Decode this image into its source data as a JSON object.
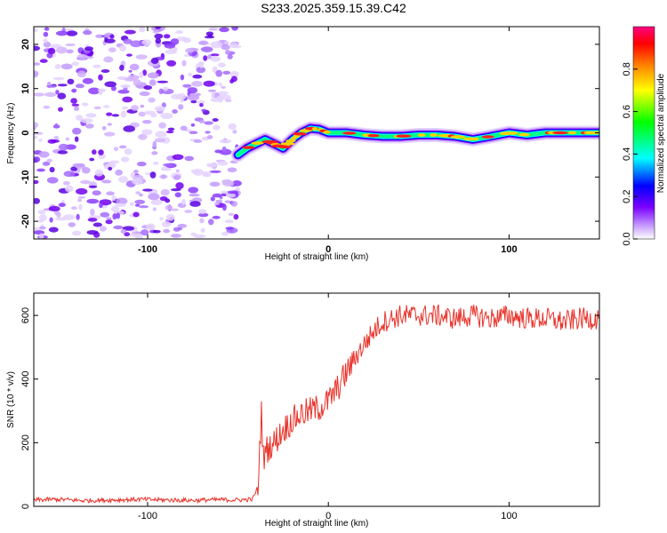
{
  "title": "S233.2025.359.15.39.C42",
  "chart_data": [
    {
      "type": "heatmap",
      "name": "spectrogram",
      "xlabel": "Height of straight line (km)",
      "ylabel": "Frequency (Hz)",
      "xlim": [
        -163,
        150
      ],
      "ylim": [
        -24,
        24
      ],
      "xticks": [
        -100,
        0,
        100
      ],
      "xtick_labels": [
        "-100",
        "0",
        "100"
      ],
      "yticks": [
        20,
        10,
        0,
        -10,
        -20
      ],
      "ytick_labels": [
        "20",
        "10",
        "0",
        "-10",
        "-20"
      ],
      "noise_region_x": [
        -163,
        -50
      ],
      "ridge": {
        "x": [
          -50,
          -45,
          -40,
          -35,
          -30,
          -25,
          -20,
          -15,
          -10,
          -5,
          0,
          10,
          20,
          30,
          40,
          50,
          60,
          70,
          80,
          90,
          100,
          110,
          120,
          130,
          140,
          150
        ],
        "freq": [
          -5,
          -3.5,
          -2.5,
          -1.5,
          -2.5,
          -3.5,
          -1.5,
          0,
          1,
          0.8,
          0,
          0,
          -0.5,
          -0.8,
          -0.8,
          -0.5,
          -0.5,
          -0.8,
          -1.5,
          -0.8,
          0,
          -0.5,
          0,
          0,
          0,
          0
        ]
      },
      "colorbar": {
        "label": "Normalized spectral amplitude",
        "range": [
          0,
          1
        ],
        "ticks": [
          0.0,
          0.2,
          0.4,
          0.6,
          0.8
        ],
        "tick_labels": [
          "0.0",
          "0.2",
          "0.4",
          "0.6",
          "0.8"
        ],
        "colors": [
          "#ffffff",
          "#c8a0ff",
          "#7a00ff",
          "#0000ff",
          "#00ffff",
          "#00ff00",
          "#ffff00",
          "#ff8000",
          "#ff0000",
          "#ff0080"
        ]
      }
    },
    {
      "type": "line",
      "name": "snr",
      "xlabel": "Height of straight line (km)",
      "ylabel": "SNR (10 * v/v)",
      "xlim": [
        -163,
        150
      ],
      "ylim": [
        0,
        670
      ],
      "xticks": [
        -100,
        0,
        100
      ],
      "xtick_labels": [
        "-100",
        "0",
        "100"
      ],
      "yticks": [
        0,
        200,
        400,
        600
      ],
      "ytick_labels": [
        "0",
        "200",
        "400",
        "600"
      ],
      "line_color": "#e8322a",
      "series": [
        {
          "name": "SNR",
          "x": [
            -163,
            -150,
            -135,
            -120,
            -105,
            -90,
            -75,
            -60,
            -50,
            -42,
            -39,
            -37,
            -36,
            -34,
            -30,
            -25,
            -20,
            -15,
            -10,
            -5,
            0,
            5,
            10,
            15,
            20,
            25,
            30,
            40,
            50,
            60,
            70,
            80,
            90,
            100,
            110,
            120,
            130,
            140,
            150
          ],
          "y": [
            20,
            22,
            18,
            20,
            22,
            20,
            19,
            21,
            20,
            22,
            60,
            300,
            150,
            180,
            200,
            240,
            270,
            290,
            300,
            310,
            330,
            370,
            420,
            470,
            510,
            550,
            580,
            600,
            600,
            600,
            590,
            600,
            590,
            600,
            590,
            590,
            580,
            590,
            590
          ]
        }
      ]
    },
    {
      "type": "colorbar",
      "name": "amplitude-scale",
      "label": "Normalized spectral amplitude",
      "range": [
        0,
        1
      ]
    }
  ]
}
